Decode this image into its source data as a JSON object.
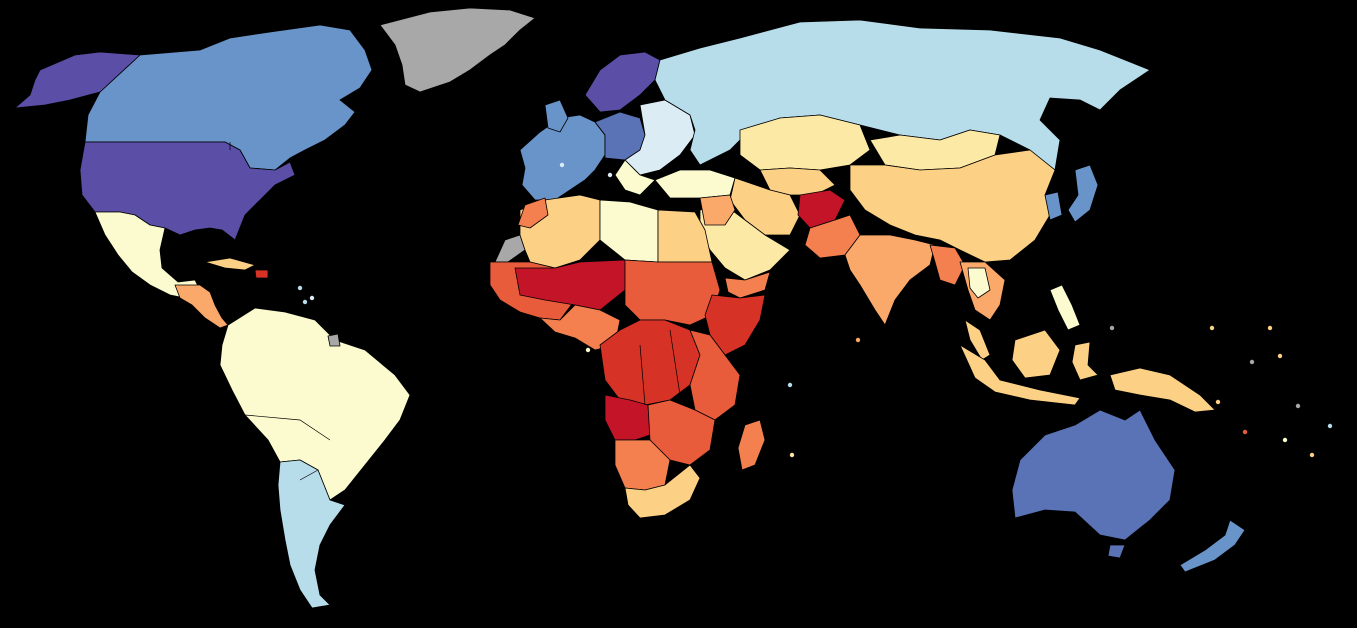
{
  "map": {
    "background": "#000000",
    "border_color": "#000000",
    "palette": {
      "purple": "#5b4ea6",
      "blue": "#5a73b6",
      "steel_blue": "#6894c9",
      "light_blue": "#b7dcea",
      "pale_blue": "#dcecf5",
      "pale_yellow": "#fbfbcf",
      "cream": "#fde9a6",
      "light_orange": "#fdd185",
      "orange": "#fba96a",
      "dark_orange": "#f5804f",
      "red_orange": "#e95c3b",
      "red": "#d63326",
      "crimson": "#c41428",
      "no_data": "#a8a8a8"
    }
  }
}
